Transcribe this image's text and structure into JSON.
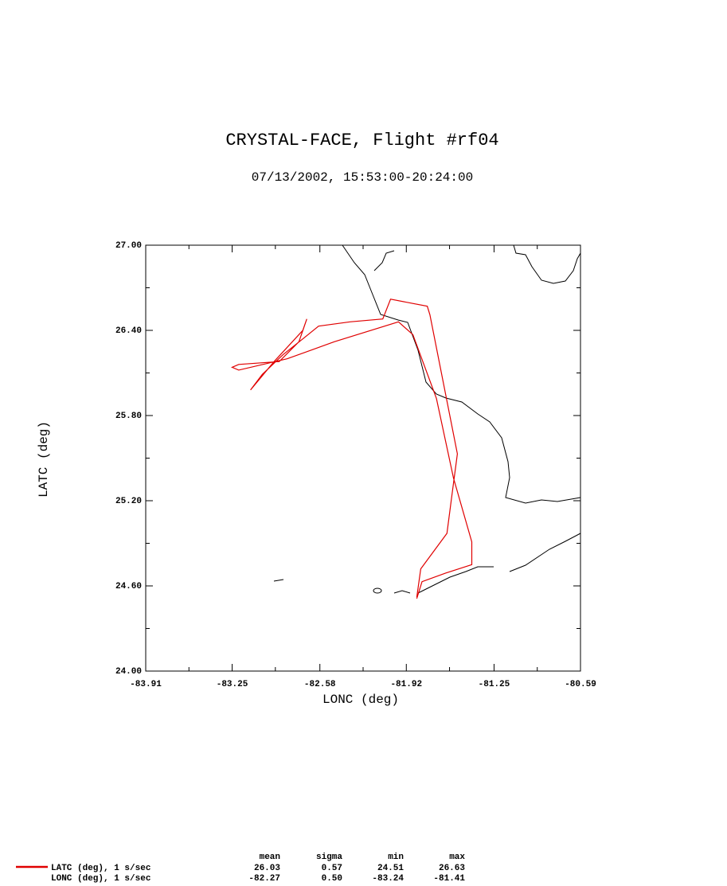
{
  "chart_data": {
    "type": "line",
    "title": "CRYSTAL-FACE, Flight #rf04",
    "subtitle": "07/13/2002, 15:53:00-20:24:00",
    "x_label": "LONC (deg)",
    "y_label": "LATC (deg)",
    "xlim": [
      -83.91,
      -80.59
    ],
    "xticks": [
      -83.91,
      -83.25,
      -82.58,
      -81.92,
      -81.25,
      -80.59
    ],
    "xminorticks": [
      -83.58,
      -82.92,
      -82.25,
      -81.59,
      -80.92
    ],
    "ylim": [
      24,
      27
    ],
    "yticks": [
      {
        "value": 24,
        "label": "24.00"
      },
      {
        "value": 24.6,
        "label": "24.60"
      },
      {
        "value": 25.2,
        "label": "25.20"
      },
      {
        "value": 25.8,
        "label": "25.80"
      },
      {
        "value": 26.4,
        "label": "26.40"
      },
      {
        "value": 27,
        "label": "27.00"
      }
    ],
    "yminorticks": [
      24.3,
      24.9,
      25.5,
      26.1,
      26.7
    ],
    "series": [
      {
        "color": "#e00000",
        "x": [
          -81.84,
          -81.81,
          -81.61,
          -81.57,
          -81.53,
          -81.74,
          -81.76,
          -82.04,
          -82.1,
          -82.35,
          -82.59,
          -82.71,
          -82.86,
          -83.02,
          -83.11,
          -82.93,
          -82.71,
          -82.68,
          -82.74,
          -82.89,
          -83.2,
          -83.25,
          -83.2,
          -82.83,
          -82.47,
          -81.98,
          -81.87,
          -81.69,
          -81.56,
          -81.42,
          -81.42,
          -81.62,
          -81.8,
          -81.84
        ],
        "values": [
          24.52,
          24.72,
          24.97,
          25.25,
          25.53,
          26.51,
          26.57,
          26.62,
          26.48,
          26.46,
          26.43,
          26.34,
          26.23,
          26.09,
          25.98,
          26.18,
          26.4,
          26.48,
          26.32,
          26.18,
          26.16,
          26.14,
          26.12,
          26.2,
          26.32,
          26.46,
          26.37,
          25.92,
          25.36,
          24.91,
          24.75,
          24.69,
          24.63,
          24.51
        ]
      }
    ],
    "stats": {
      "columns": [
        "mean",
        "sigma",
        "min",
        "max"
      ],
      "rows": [
        {
          "label": "LATC (deg), 1 s/sec",
          "cells": [
            "26.03",
            "0.57",
            "24.51",
            "26.63"
          ]
        },
        {
          "label": "LONC (deg), 1 s/sec",
          "cells": [
            "-82.27",
            "0.50",
            "-83.24",
            "-81.41"
          ]
        }
      ]
    }
  }
}
